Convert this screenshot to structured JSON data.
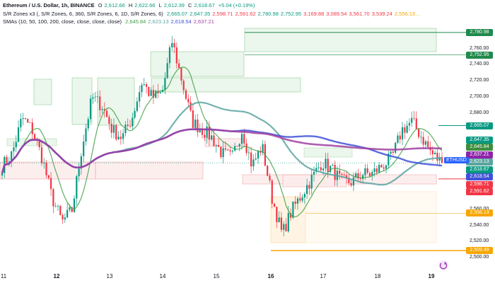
{
  "legend": {
    "line1": {
      "symbol": "Ethereum / U.S. Dollar, 1h, BINANCE",
      "o_label": "O",
      "o_value": "2,612.66",
      "h_label": "H",
      "h_value": "2,622.66",
      "l_label": "L",
      "l_value": "2,612.39",
      "c_label": "C",
      "c_value": "2,618.67",
      "change": "+5.04 (+0.19%)"
    },
    "line2": {
      "name": "S/R Zones x3 (, S/R Zones, 6, 360, S/R Zones, 6, 1D, S/R Zones, 6)",
      "values": [
        "2,665.07",
        "2,647.35",
        "2,598.71",
        "2,591.62",
        "2,780.98",
        "2,752.95",
        "3,169.88",
        "3,089.54",
        "3,561.70",
        "3,539.24",
        "2,556.13…"
      ],
      "colors": [
        "#089981",
        "#089981",
        "#f23645",
        "#f23645",
        "#089981",
        "#089981",
        "#f23645",
        "#f23645",
        "#f23645",
        "#f23645",
        "#f7a600"
      ]
    },
    "line3": {
      "name": "SMAs (10, 50, 100, 200, close, close, close, close)",
      "values": [
        "2,645.84",
        "2,623.13",
        "2,618.54",
        "2,637.21"
      ]
    }
  },
  "price_axis": {
    "ticks": [
      "2,780.00",
      "2,760.00",
      "2,740.00",
      "2,720.00",
      "2,700.00",
      "2,680.00",
      "2,660.00",
      "2,640.00",
      "2,620.00",
      "2,600.00",
      "2,580.00",
      "2,560.00",
      "2,540.00",
      "2,520.00",
      "2,500.00"
    ]
  },
  "price_labels": [
    {
      "text": "2,780.98",
      "price": 2780.98,
      "color": "#1f8a4c"
    },
    {
      "text": "2,752.95",
      "price": 2752.95,
      "color": "#1f8a4c"
    },
    {
      "text": "2,665.07",
      "price": 2665.07,
      "color": "#089981"
    },
    {
      "text": "2,647.35",
      "price": 2647.35,
      "color": "#089981"
    },
    {
      "text": "2,645.84",
      "price": 2645.84,
      "color": "#3c8d3c"
    },
    {
      "text": "2,637.21",
      "price": 2637.21,
      "color": "#8e24aa"
    },
    {
      "text": "2,623.13",
      "price": 2623.13,
      "color": "#5aa5a0"
    },
    {
      "text": "2,618.67",
      "price": 2618.67,
      "color": "#089981"
    },
    {
      "text": "2,618.54",
      "price": 2618.54,
      "color": "#3f51d8"
    },
    {
      "text": "2,598.71",
      "price": 2598.71,
      "color": "#f23645"
    },
    {
      "text": "2,591.62",
      "price": 2591.62,
      "color": "#f23645"
    },
    {
      "text": "2,556.13",
      "price": 2556.13,
      "color": "#f7a600"
    },
    {
      "text": "2,509.49",
      "price": 2509.49,
      "color": "#f7a600"
    }
  ],
  "time_axis": {
    "ticks": [
      {
        "label": "11",
        "bold": false
      },
      {
        "label": "12",
        "bold": true
      },
      {
        "label": "13",
        "bold": false
      },
      {
        "label": "14",
        "bold": false
      },
      {
        "label": "15",
        "bold": false
      },
      {
        "label": "16",
        "bold": true
      },
      {
        "label": "17",
        "bold": false
      },
      {
        "label": "18",
        "bold": false
      },
      {
        "label": "19",
        "bold": true
      }
    ]
  },
  "symbol_tag": "ETHUSD",
  "replay_icon": "replay-icon",
  "chart_data": {
    "type": "candlestick",
    "x": "hourly candles, dates 11–19",
    "ylim": [
      2500,
      2790
    ],
    "close_anchor": [
      2615,
      2630,
      2675,
      2660,
      2625,
      2575,
      2545,
      2560,
      2640,
      2700,
      2690,
      2660,
      2650,
      2675,
      2720,
      2700,
      2705,
      2770,
      2720,
      2670,
      2660,
      2650,
      2630,
      2625,
      2660,
      2615,
      2640,
      2575,
      2530,
      2560,
      2580,
      2600,
      2620,
      2610,
      2595,
      2595,
      2605,
      2605,
      2615,
      2625,
      2660,
      2670,
      2650,
      2630,
      2618.67
    ],
    "sma_series": [
      {
        "name": "SMA 10",
        "color": "#43a047",
        "last": 2645.84
      },
      {
        "name": "SMA 50",
        "color": "#5aa5a0",
        "last": 2623.13
      },
      {
        "name": "SMA 100",
        "color": "#3f51d8",
        "last": 2618.54
      },
      {
        "name": "SMA 200",
        "color": "#a040a0",
        "last": 2637.21
      }
    ],
    "zones": [
      {
        "from": 2752.95,
        "to": 2780.98,
        "kind": "resistance"
      },
      {
        "from": 2591.62,
        "to": 2598.71,
        "kind": "support"
      },
      {
        "from": 2509.49,
        "to": 2556.13,
        "kind": "support-daily"
      }
    ]
  }
}
